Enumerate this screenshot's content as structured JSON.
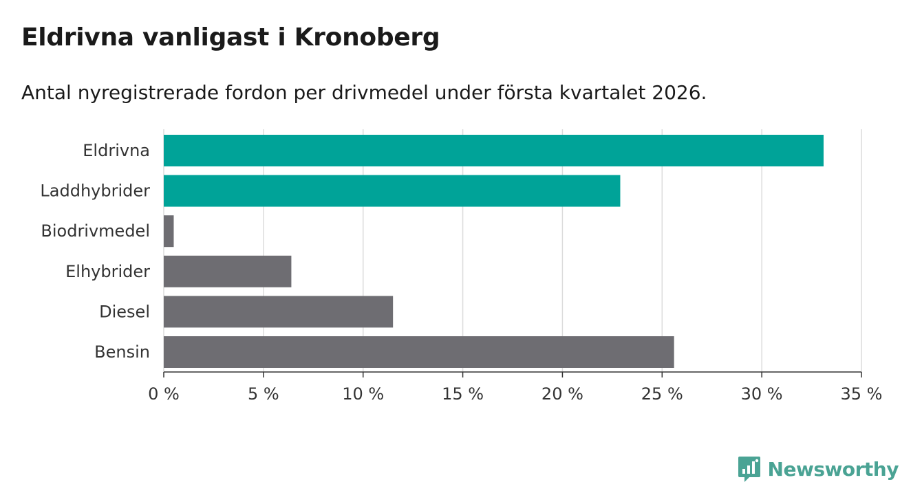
{
  "title": "Eldrivna vanligast i Kronoberg",
  "subtitle": "Antal nyregistrerade fordon per drivmedel under första kvartalet 2026.",
  "brand": {
    "name": "Newsworthy",
    "color": "#4aa394",
    "icon": "bar-chart-speech-bubble-icon"
  },
  "colors": {
    "highlight": "#00a398",
    "default": "#6e6d72",
    "grid": "#dcdcdc",
    "axis": "#333333"
  },
  "chart_data": {
    "type": "bar",
    "orientation": "horizontal",
    "title": "Eldrivna vanligast i Kronoberg",
    "subtitle": "Antal nyregistrerade fordon per drivmedel under första kvartalet 2026.",
    "categories": [
      "Eldrivna",
      "Laddhybrider",
      "Biodrivmedel",
      "Elhybrider",
      "Diesel",
      "Bensin"
    ],
    "values": [
      33.1,
      22.9,
      0.5,
      6.4,
      11.5,
      25.6
    ],
    "highlighted": [
      true,
      true,
      false,
      false,
      false,
      false
    ],
    "xlim": [
      0,
      35
    ],
    "xticks": [
      0,
      5,
      10,
      15,
      20,
      25,
      30,
      35
    ],
    "xtick_labels": [
      "0 %",
      "5 %",
      "10 %",
      "15 %",
      "20 %",
      "25 %",
      "30 %",
      "35 %"
    ],
    "xlabel": "",
    "ylabel": "",
    "grid": true,
    "legend": "none"
  }
}
